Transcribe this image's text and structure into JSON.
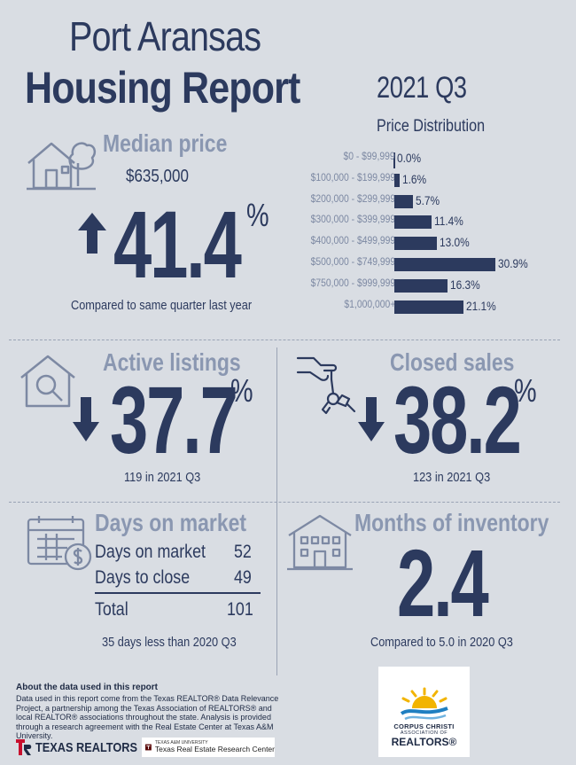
{
  "header": {
    "title_line1": "Port Aransas",
    "title_line2": "Housing Report",
    "quarter": "2021 Q3"
  },
  "median": {
    "label": "Median price",
    "price": "$635,000",
    "change_direction": "up",
    "change_value": "41.4",
    "change_unit": "%",
    "comparison": "Compared to same quarter last year"
  },
  "price_distribution": {
    "title": "Price Distribution",
    "chart_data": {
      "type": "bar",
      "title": "Price Distribution",
      "categories": [
        "$0 - $99,999",
        "$100,000 - $199,999",
        "$200,000 - $299,999",
        "$300,000 - $399,999",
        "$400,000 - $499,999",
        "$500,000 - $749,999",
        "$750,000 - $999,999",
        "$1,000,000+"
      ],
      "values": [
        0.0,
        1.6,
        5.7,
        11.4,
        13.0,
        30.9,
        16.3,
        21.1
      ],
      "value_labels": [
        "0.0%",
        "1.6%",
        "5.7%",
        "11.4%",
        "13.0%",
        "30.9%",
        "16.3%",
        "21.1%"
      ],
      "orientation": "horizontal",
      "color": "#2c3a5e"
    }
  },
  "active_listings": {
    "label": "Active listings",
    "change_direction": "down",
    "change_value": "37.7",
    "change_unit": "%",
    "detail": "119 in 2021 Q3"
  },
  "closed_sales": {
    "label": "Closed sales",
    "change_direction": "down",
    "change_value": "38.2",
    "change_unit": "%",
    "detail": "123 in 2021 Q3"
  },
  "days_on_market": {
    "label": "Days on market",
    "rows": [
      {
        "label": "Days on market",
        "value": "52"
      },
      {
        "label": "Days to close",
        "value": "49"
      }
    ],
    "total_label": "Total",
    "total_value": "101",
    "comparison": "35 days less than 2020 Q3"
  },
  "months_inventory": {
    "label": "Months of inventory",
    "value": "2.4",
    "comparison": "Compared to 5.0 in 2020 Q3"
  },
  "footer": {
    "heading": "About the data used in this report",
    "body": "Data used in this report come from the Texas REALTOR® Data Relevance Project, a partnership among the Texas Association of REALTORS® and local REALTOR® associations throughout the state. Analysis is provided through a research agreement with the Real Estate Center at Texas A&M University.",
    "logo_texas_realtors": "TEXAS REALTORS",
    "logo_tamu_small": "TEXAS A&M UNIVERSITY",
    "logo_tamu": "Texas Real Estate Research Center",
    "logo_cc_line1": "CORPUS CHRISTI",
    "logo_cc_line2": "ASSOCIATION OF",
    "logo_cc_line3": "REALTORS®"
  },
  "colors": {
    "background": "#d9dde3",
    "navy": "#2c3a5e",
    "slate": "#8a97b1"
  },
  "icons": [
    "house-tree-icon",
    "magnifier-house-icon",
    "hand-keys-icon",
    "calendar-dollar-icon",
    "apartment-building-icon",
    "arrow-up-icon",
    "arrow-down-icon"
  ]
}
